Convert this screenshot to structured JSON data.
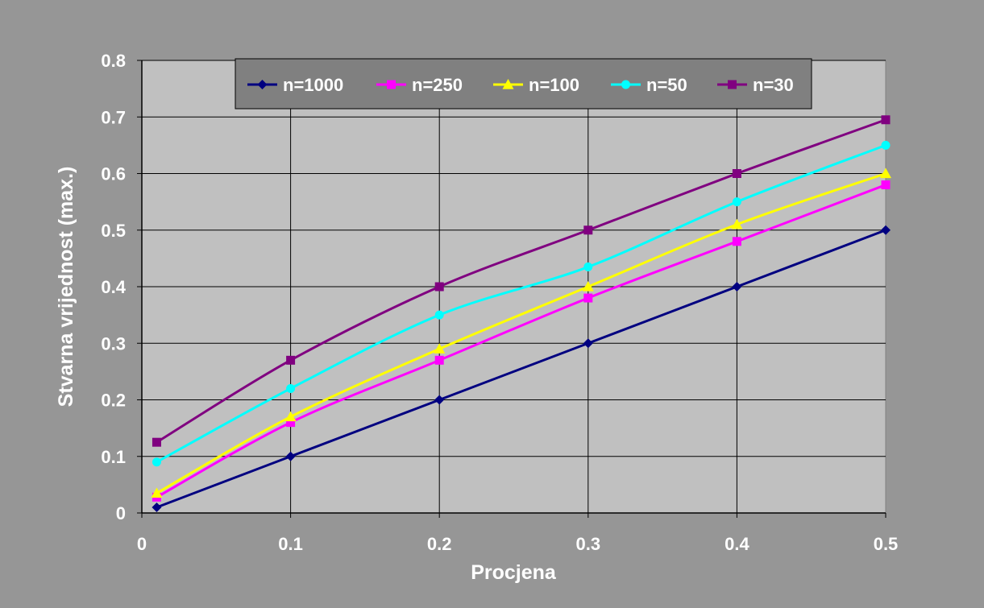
{
  "chart_data": {
    "type": "line",
    "title": "",
    "xlabel": "Procjena",
    "ylabel": "Stvarna vrijednost (max.)",
    "xlim": [
      0,
      0.5
    ],
    "ylim": [
      0,
      0.8
    ],
    "xticks": [
      "0",
      "0.1",
      "0.2",
      "0.3",
      "0.4",
      "0.5"
    ],
    "yticks": [
      "0",
      "0.1",
      "0.2",
      "0.3",
      "0.4",
      "0.5",
      "0.6",
      "0.7",
      "0.8"
    ],
    "grid": true,
    "legend_position": "top",
    "x": [
      0.01,
      0.1,
      0.2,
      0.3,
      0.4,
      0.5
    ],
    "series": [
      {
        "name": "n=1000",
        "color": "#000080",
        "marker": "diamond",
        "values": [
          0.01,
          0.1,
          0.2,
          0.3,
          0.4,
          0.5
        ]
      },
      {
        "name": "n=250",
        "color": "#ff00ff",
        "marker": "square",
        "values": [
          0.028,
          0.16,
          0.27,
          0.38,
          0.48,
          0.58
        ]
      },
      {
        "name": "n=100",
        "color": "#ffff00",
        "marker": "triangle",
        "values": [
          0.035,
          0.17,
          0.29,
          0.4,
          0.51,
          0.6
        ]
      },
      {
        "name": "n=50",
        "color": "#00ffff",
        "marker": "circle",
        "values": [
          0.09,
          0.22,
          0.35,
          0.435,
          0.55,
          0.65
        ]
      },
      {
        "name": "n=30",
        "color": "#800080",
        "marker": "square",
        "values": [
          0.125,
          0.27,
          0.4,
          0.5,
          0.6,
          0.695
        ]
      }
    ],
    "colors": {
      "page_background": "#969696",
      "plot_background": "#c0c0c0",
      "legend_background": "#808080",
      "gridline": "#000000",
      "text": "#ffffff"
    }
  }
}
